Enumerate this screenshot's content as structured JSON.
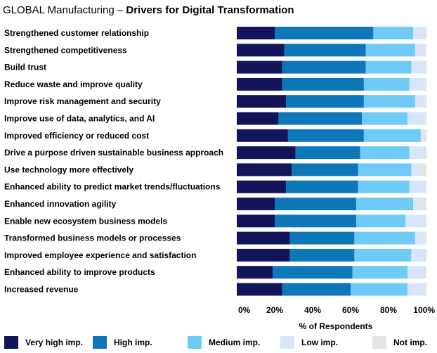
{
  "title": {
    "lead": "GLOBAL Manufacturing – ",
    "bold": "Drivers for Digital Transformation"
  },
  "chart_data": {
    "type": "bar",
    "orientation": "horizontal",
    "stacked": true,
    "categories": [
      "Strengthened customer relationship",
      "Strengthened competitiveness",
      "Build trust",
      "Reduce waste and improve quality",
      "Improve risk management and security",
      "Improve use of data, analytics, and AI",
      "Improved efficiency or reduced cost",
      "Drive a purpose driven sustainable business approach",
      "Use technology more effectively",
      "Enhanced ability to predict market trends/fluctuations",
      "Enhanced innovation agility",
      "Enable new ecosystem business models",
      "Transformed business models or processes",
      "Improved employee experience and satisfaction",
      "Enhanced ability to improve products",
      "Increased revenue"
    ],
    "series": [
      {
        "name": "Very high imp.",
        "color": "#14145a",
        "values": [
          20,
          25,
          24,
          24,
          26,
          22,
          27,
          31,
          29,
          26,
          20,
          20,
          28,
          28,
          19,
          24
        ]
      },
      {
        "name": "High imp.",
        "color": "#0e77ba",
        "values": [
          52,
          43,
          44,
          43,
          41,
          44,
          40,
          34,
          35,
          38,
          43,
          43,
          34,
          34,
          42,
          36
        ]
      },
      {
        "name": "Medium imp.",
        "color": "#6ecbf7",
        "values": [
          21,
          26,
          24,
          24,
          27,
          24,
          30,
          26,
          28,
          27,
          30,
          26,
          32,
          30,
          29,
          30
        ]
      },
      {
        "name": "Low imp.",
        "color": "#d7e6fa",
        "values": [
          5,
          4,
          7,
          8,
          5,
          9,
          2,
          8,
          5,
          9,
          4,
          11,
          5,
          8,
          8,
          8
        ]
      },
      {
        "name": "Not imp.",
        "color": "#e3e3e3",
        "values": [
          2,
          2,
          1,
          1,
          1,
          1,
          1,
          1,
          3,
          0,
          3,
          0,
          1,
          0,
          2,
          2
        ]
      }
    ],
    "x_ticks": [
      "0%",
      "20%",
      "40%",
      "60%",
      "80%",
      "100%"
    ],
    "xlim": [
      0,
      100
    ],
    "xlabel": "% of Respondents",
    "grid": false,
    "legend_position": "bottom"
  }
}
